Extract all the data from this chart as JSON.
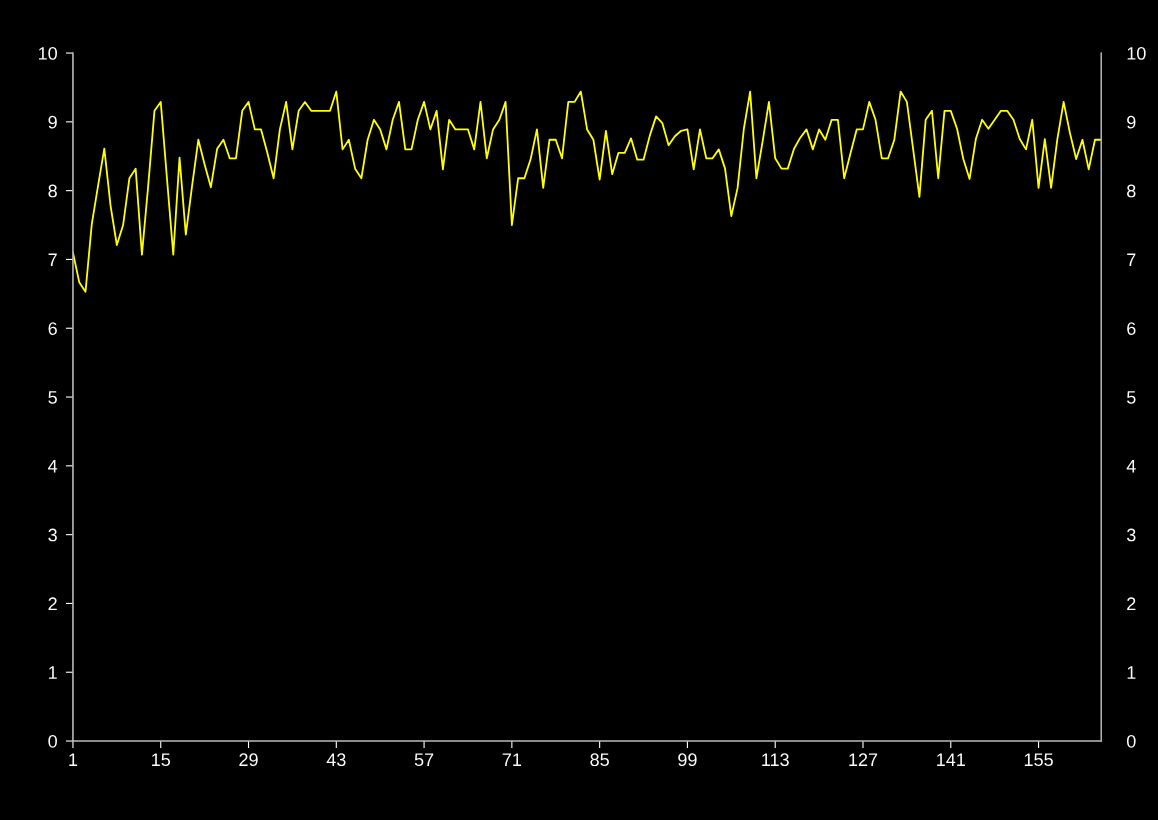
{
  "chart_data": {
    "type": "line",
    "categories": [
      "1",
      null,
      null,
      null,
      null,
      null,
      null,
      null,
      null,
      null,
      null,
      null,
      null,
      null,
      "15",
      null,
      null,
      null,
      null,
      null,
      null,
      null,
      null,
      null,
      null,
      null,
      null,
      null,
      "29",
      null,
      null,
      null,
      null,
      null,
      null,
      null,
      null,
      null,
      null,
      null,
      null,
      null,
      "43",
      null,
      null,
      null,
      null,
      null,
      null,
      null,
      null,
      null,
      null,
      null,
      null,
      null,
      "57",
      null,
      null,
      null,
      null,
      null,
      null,
      null,
      null,
      null,
      null,
      null,
      null,
      null,
      "71",
      null,
      null,
      null,
      null,
      null,
      null,
      null,
      null,
      null,
      null,
      null,
      null,
      null,
      "85",
      null,
      null,
      null,
      null,
      null,
      null,
      null,
      null,
      null,
      null,
      null,
      null,
      null,
      "99",
      null,
      null,
      null,
      null,
      null,
      null,
      null,
      null,
      null,
      null,
      null,
      null,
      null,
      "113",
      null,
      null,
      null,
      null,
      null,
      null,
      null,
      null,
      null,
      null,
      null,
      null,
      null,
      "127",
      null,
      null,
      null,
      null,
      null,
      null,
      null,
      null,
      null,
      null,
      null,
      null,
      null,
      "141",
      null,
      null,
      null,
      null,
      null,
      null,
      null,
      null,
      null,
      null,
      null,
      null,
      null,
      "155",
      null,
      null,
      null,
      null,
      null,
      null,
      null,
      null,
      null,
      null
    ],
    "series": [
      {
        "color": "#ffff00",
        "values": [
          7.1,
          6.67,
          6.53,
          7.51,
          8.07,
          8.61,
          7.78,
          7.21,
          7.5,
          8.18,
          8.32,
          7.07,
          8.07,
          9.16,
          9.29,
          8.17,
          7.07,
          8.48,
          7.36,
          8.07,
          8.74,
          8.38,
          8.05,
          8.61,
          8.74,
          8.47,
          8.47,
          9.16,
          9.29,
          8.89,
          8.89,
          8.55,
          8.18,
          8.89,
          9.29,
          8.6,
          9.16,
          9.29,
          9.16,
          9.16,
          9.16,
          9.16,
          9.44,
          8.6,
          8.74,
          8.32,
          8.18,
          8.74,
          9.03,
          8.89,
          8.6,
          9.03,
          9.29,
          8.6,
          8.6,
          9.03,
          9.29,
          8.89,
          9.16,
          8.31,
          9.03,
          8.89,
          8.89,
          8.89,
          8.6,
          9.29,
          8.47,
          8.89,
          9.03,
          9.29,
          7.5,
          8.18,
          8.18,
          8.46,
          8.89,
          8.04,
          8.74,
          8.74,
          8.47,
          9.29,
          9.29,
          9.44,
          8.89,
          8.74,
          8.16,
          8.87,
          8.24,
          8.55,
          8.55,
          8.76,
          8.45,
          8.45,
          8.8,
          9.08,
          8.98,
          8.66,
          8.79,
          8.87,
          8.89,
          8.31,
          8.89,
          8.47,
          8.47,
          8.6,
          8.32,
          7.63,
          8.04,
          8.9,
          9.44,
          8.18,
          8.72,
          9.29,
          8.47,
          8.32,
          8.32,
          8.61,
          8.77,
          8.89,
          8.6,
          8.89,
          8.74,
          9.03,
          9.03,
          8.18,
          8.54,
          8.89,
          8.89,
          9.29,
          9.03,
          8.47,
          8.47,
          8.74,
          9.44,
          9.29,
          8.6,
          7.91,
          9.03,
          9.16,
          8.18,
          9.16,
          9.16,
          8.9,
          8.46,
          8.17,
          8.75,
          9.03,
          8.9,
          9.03,
          9.16,
          9.16,
          9.03,
          8.75,
          8.6,
          9.03,
          8.04,
          8.75,
          8.04,
          8.75,
          9.29,
          8.84,
          8.46,
          8.74,
          8.31,
          8.74,
          8.74
        ]
      }
    ],
    "ylim": [
      0,
      10
    ],
    "yticks": [
      0,
      1,
      2,
      3,
      4,
      5,
      6,
      7,
      8,
      9,
      10
    ],
    "y2lim": [
      0,
      10
    ],
    "y2ticks": [
      0,
      1,
      2,
      3,
      4,
      5,
      6,
      7,
      8,
      9,
      10
    ],
    "grid": false,
    "legend": false,
    "marker": "none",
    "line_style": "solid"
  }
}
